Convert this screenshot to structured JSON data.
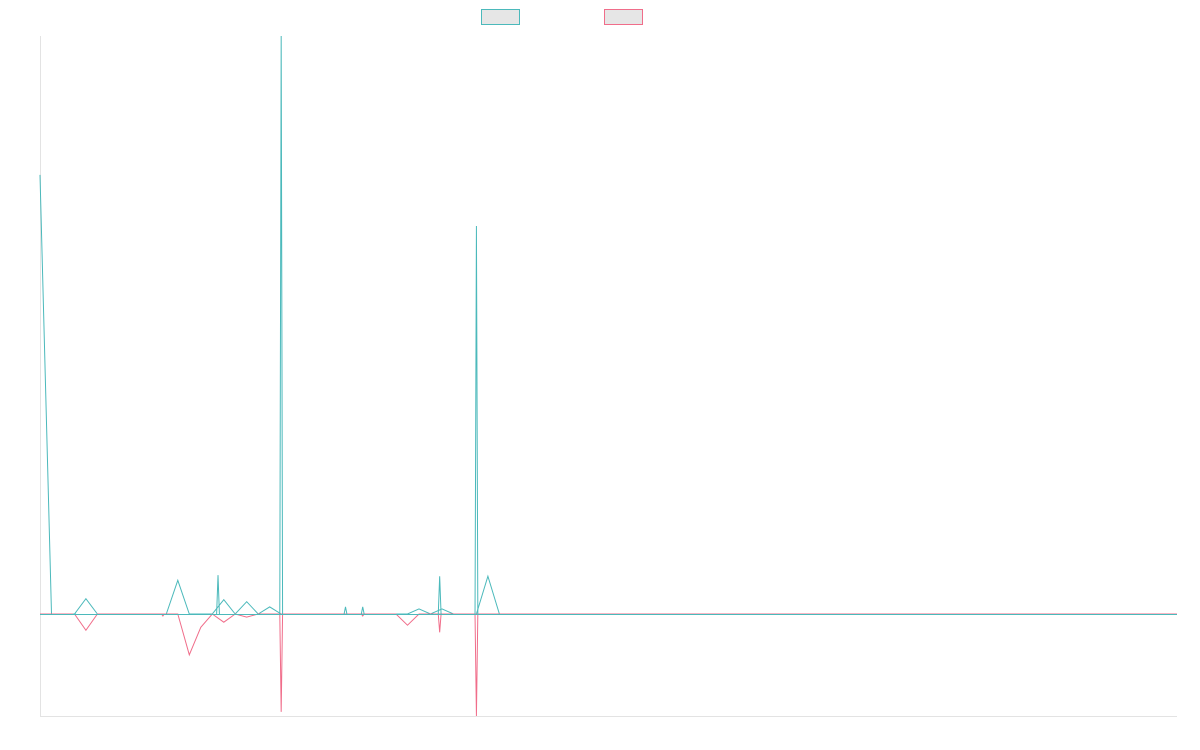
{
  "chart_data": {
    "type": "line",
    "title": "",
    "xlabel": "",
    "ylabel": "",
    "grid": false,
    "legend_position": "top-center",
    "x_count": 100,
    "ylim": [
      -100,
      560
    ],
    "series": [
      {
        "color": "#4bb9bb",
        "values": [
          430,
          0,
          0,
          0,
          15,
          0,
          0,
          0,
          0,
          0,
          0,
          0,
          33,
          0,
          0,
          0,
          14,
          0,
          12,
          0,
          7,
          0,
          0,
          0,
          0,
          0,
          0,
          0,
          0,
          0,
          0,
          0,
          0,
          5,
          0,
          5,
          0,
          0,
          0,
          37,
          0,
          0,
          0,
          0,
          0,
          0,
          0,
          0,
          0,
          0,
          0,
          0,
          0,
          0,
          0,
          0,
          0,
          0,
          0,
          0,
          0,
          0,
          0,
          0,
          0,
          0,
          0,
          0,
          0,
          0,
          0,
          0,
          0,
          0,
          0,
          0,
          0,
          0,
          0,
          0,
          0,
          0,
          0,
          0,
          0,
          0,
          0,
          0,
          0,
          0,
          0,
          0,
          0,
          0,
          0,
          0,
          0,
          0,
          0,
          0
        ]
      },
      {
        "color": "#f06d8a",
        "values": [
          0,
          0,
          0,
          0,
          -16,
          0,
          0,
          0,
          0,
          0,
          0,
          0,
          0,
          -40,
          -13,
          0,
          -8,
          0,
          -3,
          0,
          0,
          0,
          0,
          0,
          0,
          0,
          0,
          0,
          0,
          0,
          0,
          0,
          -11,
          0,
          0,
          0,
          0,
          0,
          0,
          0,
          0,
          0,
          0,
          0,
          0,
          0,
          0,
          0,
          0,
          0,
          0,
          0,
          0,
          0,
          0,
          0,
          0,
          0,
          0,
          0,
          0,
          0,
          0,
          0,
          0,
          0,
          0,
          0,
          0,
          0,
          0,
          0,
          0,
          0,
          0,
          0,
          0,
          0,
          0,
          0,
          0,
          0,
          0,
          0,
          0,
          0,
          0,
          0,
          0,
          0,
          0,
          0,
          0,
          0,
          0,
          0,
          0,
          0,
          0,
          0
        ]
      }
    ],
    "spikes": [
      {
        "x": 21,
        "series": 0,
        "value": 566
      },
      {
        "x": 21,
        "series": 1,
        "value": -96
      },
      {
        "x": 38,
        "series": 0,
        "value": 380
      },
      {
        "x": 38,
        "series": 1,
        "value": -100
      },
      {
        "x": 34.8,
        "series": 0,
        "value": 37
      },
      {
        "x": 34.8,
        "series": 1,
        "value": -18
      },
      {
        "x": 26.6,
        "series": 0,
        "value": 7
      },
      {
        "x": 28.1,
        "series": 0,
        "value": 7
      },
      {
        "x": 28.1,
        "series": 1,
        "value": -2
      },
      {
        "x": 3.0,
        "series": 0,
        "value": 0
      },
      {
        "x": 10.7,
        "series": 1,
        "value": -2
      },
      {
        "x": 15.5,
        "series": 0,
        "value": 38
      }
    ]
  }
}
